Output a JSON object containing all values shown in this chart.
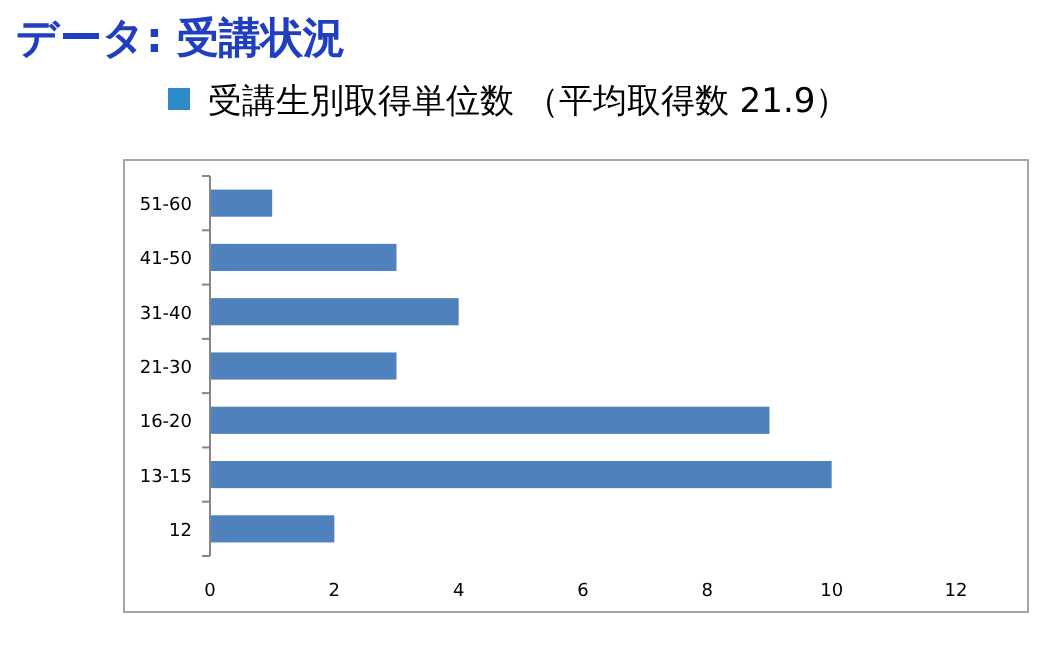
{
  "chart_data": {
    "type": "bar",
    "orientation": "horizontal",
    "title": "データ: 受講状況",
    "subtitle": "受講生別取得単位数 （平均取得数 21.9）",
    "categories": [
      "51-60",
      "41-50",
      "31-40",
      "21-30",
      "16-20",
      "13-15",
      "12"
    ],
    "values": [
      1,
      3,
      4,
      3,
      9,
      10,
      2
    ],
    "color": "#4f81bd",
    "xlim": [
      0,
      12
    ],
    "xticks": [
      0,
      2,
      4,
      6,
      8,
      10,
      12
    ],
    "grid": false,
    "legend": false
  }
}
